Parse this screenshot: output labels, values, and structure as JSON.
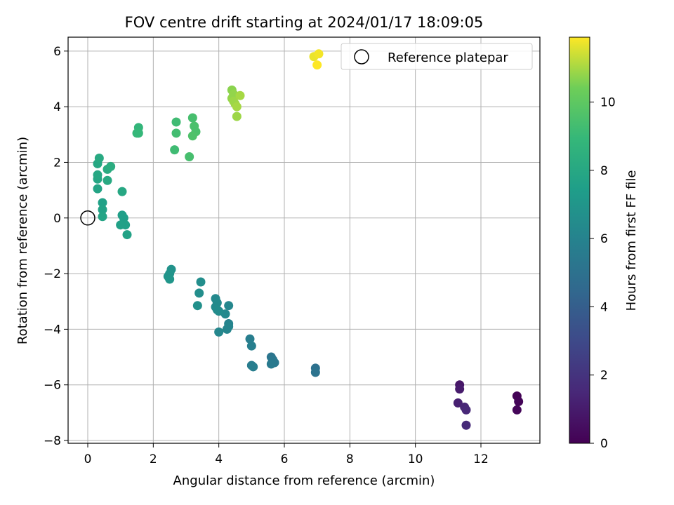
{
  "chart_data": {
    "type": "scatter",
    "title": "FOV centre drift starting at 2024/01/17 18:09:05",
    "xlabel": "Angular distance from reference (arcmin)",
    "ylabel": "Rotation from reference (arcmin)",
    "colorbar_label": "Hours from first FF file",
    "colormap": "viridis",
    "xlim": [
      -0.6,
      13.8
    ],
    "ylim": [
      -8.1,
      6.5
    ],
    "xticks": [
      0,
      2,
      4,
      6,
      8,
      10,
      12
    ],
    "yticks": [
      -8,
      -6,
      -4,
      -2,
      0,
      2,
      4,
      6
    ],
    "colorbar_range": [
      0,
      11.9
    ],
    "colorbar_ticks": [
      0,
      2,
      4,
      6,
      8,
      10
    ],
    "grid": true,
    "legend_position": "upper right",
    "reference": {
      "name": "Reference platepar",
      "x": 0,
      "y": 0
    },
    "points": [
      [
        13.1,
        -6.4,
        0.1
      ],
      [
        13.15,
        -6.6,
        0.15
      ],
      [
        13.1,
        -6.9,
        0.2
      ],
      [
        11.35,
        -6.0,
        0.8
      ],
      [
        11.35,
        -6.15,
        1.0
      ],
      [
        11.3,
        -6.65,
        1.2
      ],
      [
        11.5,
        -6.8,
        1.4
      ],
      [
        11.55,
        -6.9,
        1.5
      ],
      [
        11.55,
        -7.45,
        1.6
      ],
      [
        6.95,
        -5.4,
        5.0
      ],
      [
        6.95,
        -5.55,
        5.1
      ],
      [
        5.6,
        -5.0,
        5.2
      ],
      [
        5.65,
        -5.1,
        5.3
      ],
      [
        5.7,
        -5.2,
        5.4
      ],
      [
        5.6,
        -5.25,
        5.5
      ],
      [
        5.0,
        -5.3,
        5.6
      ],
      [
        5.05,
        -5.35,
        5.7
      ],
      [
        4.95,
        -4.35,
        5.7
      ],
      [
        5.0,
        -4.6,
        5.8
      ],
      [
        4.3,
        -3.8,
        6.0
      ],
      [
        4.3,
        -3.9,
        6.1
      ],
      [
        4.25,
        -4.0,
        6.1
      ],
      [
        4.0,
        -4.1,
        6.2
      ],
      [
        4.3,
        -3.15,
        6.2
      ],
      [
        4.2,
        -3.45,
        6.3
      ],
      [
        3.9,
        -2.9,
        6.3
      ],
      [
        3.95,
        -3.05,
        6.4
      ],
      [
        3.9,
        -3.2,
        6.4
      ],
      [
        3.95,
        -3.3,
        6.5
      ],
      [
        4.0,
        -3.35,
        6.5
      ],
      [
        3.45,
        -2.3,
        6.6
      ],
      [
        3.4,
        -2.7,
        6.6
      ],
      [
        3.35,
        -3.15,
        6.7
      ],
      [
        2.55,
        -1.85,
        6.8
      ],
      [
        2.5,
        -2.0,
        6.9
      ],
      [
        2.45,
        -2.1,
        6.9
      ],
      [
        2.5,
        -2.2,
        7.0
      ],
      [
        1.1,
        0.0,
        7.5
      ],
      [
        1.05,
        0.1,
        7.5
      ],
      [
        1.15,
        -0.25,
        7.6
      ],
      [
        1.0,
        -0.25,
        7.6
      ],
      [
        1.2,
        -0.6,
        7.7
      ],
      [
        0.45,
        0.55,
        7.6
      ],
      [
        0.45,
        0.3,
        7.7
      ],
      [
        0.45,
        0.05,
        7.8
      ],
      [
        0.3,
        1.05,
        7.8
      ],
      [
        0.3,
        1.4,
        7.9
      ],
      [
        0.3,
        1.55,
        8.0
      ],
      [
        0.3,
        1.95,
        8.0
      ],
      [
        0.35,
        2.15,
        8.1
      ],
      [
        0.6,
        1.35,
        8.1
      ],
      [
        0.6,
        1.75,
        8.2
      ],
      [
        0.7,
        1.85,
        8.3
      ],
      [
        1.05,
        0.95,
        8.0
      ],
      [
        1.55,
        3.25,
        8.8
      ],
      [
        1.5,
        3.05,
        8.9
      ],
      [
        1.55,
        3.05,
        8.9
      ],
      [
        2.7,
        3.45,
        9.2
      ],
      [
        2.7,
        3.05,
        9.3
      ],
      [
        2.65,
        2.45,
        9.2
      ],
      [
        3.2,
        3.6,
        9.4
      ],
      [
        3.25,
        3.3,
        9.5
      ],
      [
        3.3,
        3.1,
        9.5
      ],
      [
        3.2,
        2.95,
        9.6
      ],
      [
        3.1,
        2.2,
        9.4
      ],
      [
        4.4,
        4.6,
        10.7
      ],
      [
        4.45,
        4.45,
        10.8
      ],
      [
        4.4,
        4.3,
        10.8
      ],
      [
        4.45,
        4.2,
        10.9
      ],
      [
        4.5,
        4.1,
        10.9
      ],
      [
        4.55,
        4.0,
        11.0
      ],
      [
        4.65,
        4.4,
        11.0
      ],
      [
        4.55,
        3.65,
        10.9
      ],
      [
        6.9,
        5.8,
        11.7
      ],
      [
        7.05,
        5.9,
        11.8
      ],
      [
        7.0,
        5.5,
        11.9
      ]
    ]
  }
}
